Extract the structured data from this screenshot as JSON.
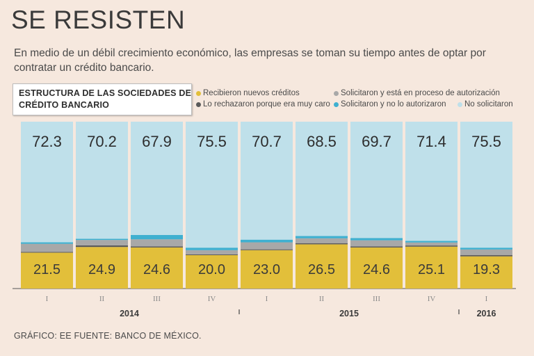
{
  "title": "SE RESISTEN",
  "subtitle": "En medio de un débil crecimiento económico, las empresas se toman  su tiempo antes de optar por contratar un crédito bancario.",
  "footer": "GRÁFICO: EE  FUENTE: BANCO DE MÉXICO.",
  "legend": {
    "title": "ESTRUCTURA DE LAS SOCIEDADES DE CRÉDITO BANCARIO",
    "items": [
      {
        "label": "Recibieron nuevos créditos",
        "color": "#e2bf3a"
      },
      {
        "label": "Solicitaron y está en proceso de autorización",
        "color": "#a8a8a8"
      },
      {
        "label": "Lo rechazaron porque era muy caro",
        "color": "#5a5a5a"
      },
      {
        "label": "Solicitaron y no lo autorizaron",
        "color": "#3fb0d0"
      },
      {
        "label": "No solicitaron",
        "color": "#bfe0ea"
      }
    ]
  },
  "chart_data": {
    "type": "bar",
    "stacked": true,
    "ylim": [
      0,
      100
    ],
    "categories": [
      "I",
      "II",
      "III",
      "IV",
      "I",
      "II",
      "III",
      "IV",
      "I"
    ],
    "year_groups": [
      {
        "label": "2014",
        "count": 4
      },
      {
        "label": "2015",
        "count": 4
      },
      {
        "label": "2016",
        "count": 1
      }
    ],
    "series": [
      {
        "name": "Recibieron nuevos créditos",
        "color": "#e2bf3a",
        "values": [
          21.5,
          24.9,
          24.6,
          20.0,
          23.0,
          26.5,
          24.6,
          25.1,
          19.3
        ]
      },
      {
        "name": "Lo rechazaron porque era muy caro",
        "color": "#5a5a5a",
        "values": [
          0.5,
          1.0,
          0.7,
          0.5,
          0.5,
          0.7,
          0.7,
          0.7,
          0.8
        ]
      },
      {
        "name": "Solicitaron y está en proceso de autorización",
        "color": "#a8a8a8",
        "values": [
          4.8,
          3.2,
          4.2,
          2.5,
          4.2,
          2.9,
          3.6,
          1.8,
          3.3
        ]
      },
      {
        "name": "Solicitaron y no lo autorizaron",
        "color": "#3fb0d0",
        "values": [
          0.9,
          0.7,
          2.6,
          1.5,
          1.6,
          1.4,
          1.4,
          1.0,
          1.1
        ]
      },
      {
        "name": "No solicitaron",
        "color": "#bfe0ea",
        "values": [
          72.3,
          70.2,
          67.9,
          75.5,
          70.7,
          68.5,
          69.7,
          71.4,
          75.5
        ]
      }
    ]
  }
}
